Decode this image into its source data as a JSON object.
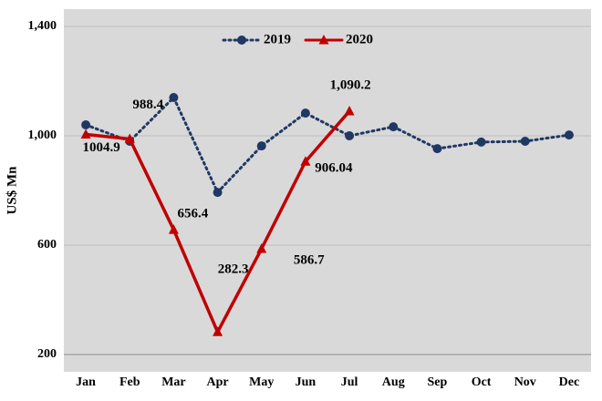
{
  "chart_data": {
    "type": "line",
    "y_label": "US$ Mn",
    "categories": [
      "Jan",
      "Feb",
      "Mar",
      "Apr",
      "May",
      "Jun",
      "Jul",
      "Aug",
      "Sep",
      "Oct",
      "Nov",
      "Dec"
    ],
    "series": [
      {
        "name": "2019",
        "color": "#1f3864",
        "marker": "circle",
        "dash": true,
        "values": [
          1040,
          980,
          1140,
          793,
          963,
          1083,
          1000,
          1033,
          953,
          977,
          980,
          1003
        ]
      },
      {
        "name": "2020",
        "color": "#c00000",
        "marker": "triangle",
        "dash": false,
        "values": [
          1004.9,
          988.4,
          656.4,
          282.3,
          586.7,
          906.04,
          1090.2,
          null,
          null,
          null,
          null,
          null
        ],
        "value_labels": [
          "1004.9",
          "988.4",
          "656.4",
          "282.3",
          "586.7",
          "906.04",
          "1,090.2",
          null,
          null,
          null,
          null,
          null
        ]
      }
    ],
    "ylim": [
      200,
      1400
    ],
    "yticks": [
      200,
      600,
      {
        "value": 1000,
        "label": "1,000"
      },
      {
        "value": 1400,
        "label": "1,400"
      }
    ],
    "grid": true,
    "legend": "top"
  }
}
